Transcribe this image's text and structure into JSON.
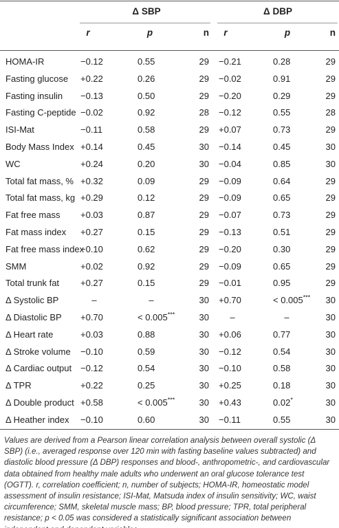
{
  "table": {
    "groups": [
      "Δ SBP",
      "Δ DBP"
    ],
    "columns": [
      "r",
      "p",
      "n",
      "r",
      "p",
      "n"
    ],
    "rows": [
      [
        "HOMA-IR",
        "−0.12",
        "0.55",
        "29",
        "−0.21",
        "0.28",
        "29"
      ],
      [
        "Fasting glucose",
        "+0.22",
        "0.26",
        "29",
        "−0.02",
        "0.91",
        "29"
      ],
      [
        "Fasting insulin",
        "−0.13",
        "0.50",
        "29",
        "−0.20",
        "0.29",
        "29"
      ],
      [
        "Fasting C-peptide",
        "−0.02",
        "0.92",
        "28",
        "−0.12",
        "0.55",
        "28"
      ],
      [
        "ISI-Mat",
        "−0.11",
        "0.58",
        "29",
        "+0.07",
        "0.73",
        "29"
      ],
      [
        "Body Mass Index",
        "+0.14",
        "0.45",
        "30",
        "−0.14",
        "0.45",
        "30"
      ],
      [
        "WC",
        "+0.24",
        "0.20",
        "30",
        "−0.04",
        "0.85",
        "30"
      ],
      [
        "Total fat mass, %",
        "+0.32",
        "0.09",
        "29",
        "−0.09",
        "0.64",
        "29"
      ],
      [
        "Total fat mass, kg",
        "+0.29",
        "0.12",
        "29",
        "−0.09",
        "0.65",
        "29"
      ],
      [
        "Fat free mass",
        "+0.03",
        "0.87",
        "29",
        "−0.07",
        "0.73",
        "29"
      ],
      [
        "Fat mass index",
        "+0.27",
        "0.15",
        "29",
        "−0.13",
        "0.51",
        "29"
      ],
      [
        "Fat free mass index",
        "−0.10",
        "0.62",
        "29",
        "−0.20",
        "0.30",
        "29"
      ],
      [
        "SMM",
        "+0.02",
        "0.92",
        "29",
        "−0.09",
        "0.65",
        "29"
      ],
      [
        "Total trunk fat",
        "+0.27",
        "0.15",
        "29",
        "−0.01",
        "0.95",
        "29"
      ],
      [
        "Δ Systolic BP",
        "–",
        "–",
        "30",
        "+0.70",
        "< 0.005***",
        "30"
      ],
      [
        "Δ Diastolic BP",
        "+0.70",
        "< 0.005***",
        "30",
        "–",
        "–",
        "30"
      ],
      [
        "Δ Heart rate",
        "+0.03",
        "0.88",
        "30",
        "+0.06",
        "0.77",
        "30"
      ],
      [
        "Δ Stroke volume",
        "−0.10",
        "0.59",
        "30",
        "−0.12",
        "0.54",
        "30"
      ],
      [
        "Δ Cardiac output",
        "−0.12",
        "0.54",
        "30",
        "−0.10",
        "0.58",
        "30"
      ],
      [
        "Δ TPR",
        "+0.22",
        "0.25",
        "30",
        "+0.25",
        "0.18",
        "30"
      ],
      [
        "Δ Double product",
        "+0.58",
        "< 0.005***",
        "30",
        "+0.43",
        "0.02*",
        "30"
      ],
      [
        "Δ Heather index",
        "−0.10",
        "0.60",
        "30",
        "−0.11",
        "0.55",
        "30"
      ]
    ],
    "footnote": "Values are derived from a Pearson linear correlation analysis between overall systolic (Δ SBP) (i.e., averaged response over 120 min with fasting baseline values subtracted) and diastolic blood pressure (Δ DBP) responses and blood-, anthropometric-, and cardiovascular data obtained from healthy male adults who underwent an oral glucose tolerance test (OGTT). r, correlation coefficient; n, number of subjects; HOMA-IR, homeostatic model assessment of insulin resistance; ISI-Mat, Matsuda index of insulin sensitivity; WC, waist circumference; SMM, skeletal muscle mass; BP, blood pressure; TPR, total peripheral resistance; p < 0.05 was considered a statistically significant association between independent and dependent variables."
  }
}
